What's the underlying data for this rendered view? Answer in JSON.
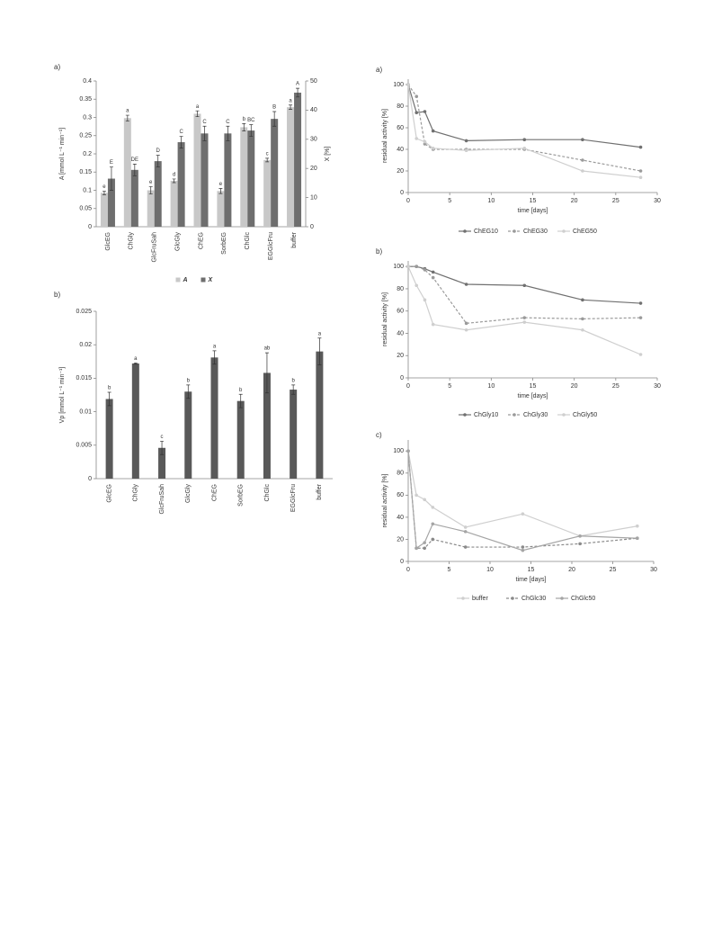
{
  "chart_data": [
    {
      "type": "bar",
      "title": "a)",
      "categories": [
        "GlcEG",
        "ChGly",
        "GlcFruSah",
        "GlcGly",
        "ChEG",
        "SorbEG",
        "ChGlc",
        "EGGlcFru",
        "buffer"
      ],
      "series": [
        {
          "name": "A",
          "color": "#c8c8c8",
          "values": [
            0.093,
            0.298,
            0.1,
            0.126,
            0.31,
            0.098,
            0.273,
            0.183,
            0.328
          ],
          "errors": [
            0.005,
            0.008,
            0.01,
            0.005,
            0.008,
            0.007,
            0.01,
            0.005,
            0.006
          ],
          "labels": [
            "e",
            "a",
            "e",
            "d",
            "a",
            "e",
            "b",
            "c",
            "a"
          ]
        },
        {
          "name": "X",
          "color": "#6e6e6e",
          "axis": "y2",
          "values": [
            16.5,
            19.5,
            22.5,
            29,
            32,
            32,
            33,
            37,
            46
          ],
          "errors": [
            4,
            2,
            2,
            2,
            2.5,
            2.5,
            2,
            2.5,
            1.5
          ],
          "labels": [
            "E",
            "DE",
            "D",
            "C",
            "C",
            "C",
            "BC",
            "B",
            "A"
          ]
        }
      ],
      "ylabel": "A [mmol L⁻¹ min⁻¹]",
      "y2label": "X [%]",
      "ylim": [
        0,
        0.4
      ],
      "yticks": [
        0,
        0.05,
        0.1,
        0.15,
        0.2,
        0.25,
        0.3,
        0.35,
        0.4
      ],
      "y2lim": [
        0,
        50
      ],
      "y2ticks": [
        0,
        10,
        20,
        30,
        40,
        50
      ],
      "legend": "bottom"
    },
    {
      "type": "bar",
      "title": "b)",
      "categories": [
        "GlcEG",
        "ChGly",
        "GlcFruSah",
        "GlcGly",
        "ChEG",
        "SorbEG",
        "ChGlc",
        "EGGlcFru",
        "buffer"
      ],
      "values": [
        0.0119,
        0.0172,
        0.0046,
        0.013,
        0.0181,
        0.0116,
        0.0158,
        0.0133,
        0.019
      ],
      "errors": [
        0.001,
        0.0001,
        0.001,
        0.001,
        0.001,
        0.001,
        0.003,
        0.0007,
        0.002
      ],
      "labels": [
        "b",
        "a",
        "c",
        "b",
        "a",
        "b",
        "ab",
        "b",
        "a"
      ],
      "color": "#595959",
      "ylabel": "Vp [mmol L⁻¹ min⁻¹]",
      "ylim": [
        0,
        0.025
      ],
      "yticks": [
        0,
        0.005,
        0.01,
        0.015,
        0.02,
        0.025
      ]
    },
    {
      "type": "line",
      "title": "a)",
      "xlabel": "time [days]",
      "ylabel": "residual activity [%]",
      "x": [
        0,
        1,
        2,
        3,
        7,
        14,
        21,
        28
      ],
      "series": [
        {
          "name": "ChEG10",
          "color": "#707070",
          "linestyle": "solid",
          "values": [
            100,
            74,
            75,
            57,
            48,
            49,
            49,
            42
          ]
        },
        {
          "name": "ChEG30",
          "color": "#9a9a9a",
          "linestyle": "dashed",
          "values": [
            100,
            89,
            45,
            40,
            40,
            40,
            30,
            20
          ]
        },
        {
          "name": "ChEG50",
          "color": "#cfcfcf",
          "linestyle": "solid",
          "values": [
            100,
            50,
            47,
            41,
            39,
            41,
            20,
            14
          ]
        }
      ],
      "xlim": [
        0,
        30
      ],
      "xticks": [
        0,
        5,
        10,
        15,
        20,
        25,
        30
      ],
      "ylim": [
        0,
        105
      ],
      "yticks": [
        0,
        20,
        40,
        60,
        80,
        100
      ],
      "legend": "bottom"
    },
    {
      "type": "line",
      "title": "b)",
      "xlabel": "time [days]",
      "ylabel": "residual activity [%]",
      "x": [
        0,
        1,
        2,
        3,
        7,
        14,
        21,
        28
      ],
      "series": [
        {
          "name": "ChGly10",
          "color": "#707070",
          "linestyle": "solid",
          "values": [
            100,
            100,
            98,
            95,
            84,
            83,
            70,
            67
          ]
        },
        {
          "name": "ChGly30",
          "color": "#9a9a9a",
          "linestyle": "dashed",
          "values": [
            100,
            100,
            97,
            90,
            49,
            54,
            53,
            54
          ]
        },
        {
          "name": "ChGly50",
          "color": "#cfcfcf",
          "linestyle": "solid",
          "values": [
            100,
            83,
            70,
            48,
            43,
            50,
            43,
            21
          ]
        }
      ],
      "xlim": [
        0,
        30
      ],
      "xticks": [
        0,
        5,
        10,
        15,
        20,
        25,
        30
      ],
      "ylim": [
        0,
        105
      ],
      "yticks": [
        0,
        20,
        40,
        60,
        80,
        100
      ],
      "legend": "bottom"
    },
    {
      "type": "line",
      "title": "c)",
      "xlabel": "time [days]",
      "ylabel": "residual activity [%]",
      "x": [
        0,
        1,
        2,
        3,
        7,
        14,
        21,
        28
      ],
      "series": [
        {
          "name": "buffer",
          "color": "#cfcfcf",
          "linestyle": "solid",
          "values": [
            100,
            60,
            56,
            49,
            31,
            43,
            23,
            32
          ]
        },
        {
          "name": "ChGlc30",
          "color": "#8a8a8a",
          "linestyle": "dashed",
          "values": [
            100,
            12,
            12,
            20,
            13,
            13,
            16,
            21
          ]
        },
        {
          "name": "ChGlc50",
          "color": "#a5a5a5",
          "linestyle": "solid",
          "values": [
            100,
            12,
            17,
            34,
            27,
            10,
            23,
            21
          ]
        }
      ],
      "xlim": [
        0,
        30
      ],
      "xticks": [
        0,
        5,
        10,
        15,
        20,
        25,
        30
      ],
      "ylim": [
        0,
        110
      ],
      "yticks": [
        0,
        20,
        40,
        60,
        80,
        100
      ],
      "legend": "bottom"
    }
  ]
}
